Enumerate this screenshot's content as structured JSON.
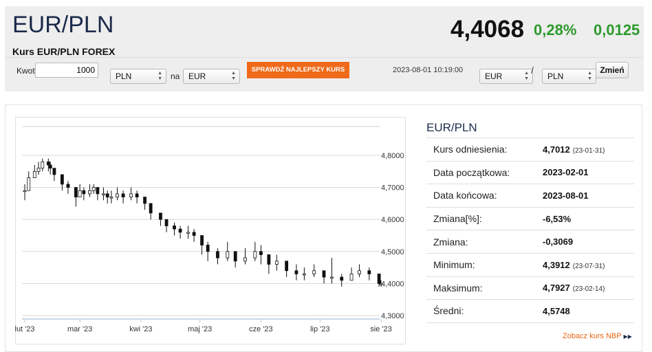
{
  "header": {
    "pair": "EUR/PLN",
    "subtitle": "Kurs EUR/PLN FOREX",
    "price": "4,4068",
    "change_pct": "0,28%",
    "change_abs": "0,0125",
    "change_color": "#2d9a2d"
  },
  "converter": {
    "amount_label": "Kwota",
    "amount_value": "1000",
    "from_currency": "PLN",
    "connector": "na",
    "to_currency": "EUR",
    "best_rate_button": "SPRAWDŹ NAJLEPSZY KURS",
    "timestamp": "2023-08-01 10:19:00",
    "pair_base": "EUR",
    "pair_separator": "/",
    "pair_quote": "PLN",
    "change_button": "Zmień",
    "accent_color": "#f06a1a"
  },
  "stats": {
    "title": "EUR/PLN",
    "rows": [
      {
        "label": "Kurs odniesienia:",
        "value": "4,7012",
        "date": "(23-01-31)"
      },
      {
        "label": "Data początkowa:",
        "value": "2023-02-01",
        "date": ""
      },
      {
        "label": "Data końcowa:",
        "value": "2023-08-01",
        "date": ""
      },
      {
        "label": "Zmiana[%]:",
        "value": "-6,53%",
        "date": ""
      },
      {
        "label": "Zmiana:",
        "value": "-0,3069",
        "date": ""
      },
      {
        "label": "Minimum:",
        "value": "4,3912",
        "date": "(23-07-31)"
      },
      {
        "label": "Maksimum:",
        "value": "4,7927",
        "date": "(23-02-14)"
      },
      {
        "label": "Średni:",
        "value": "4,5748",
        "date": ""
      }
    ],
    "nbp_link": "Zobacz kurs NBP"
  },
  "chart_data": {
    "type": "candlestick",
    "x_ticks": [
      "lut '23",
      "mar '23",
      "kwi '23",
      "maj '23",
      "cze '23",
      "lip '23",
      "sie '23"
    ],
    "y_ticks": [
      "4,8000",
      "4,7000",
      "4,6000",
      "4,5000",
      "4,4000",
      "4,3000"
    ],
    "ylim": [
      4.3,
      4.85
    ],
    "grid": true,
    "y_axis_side": "right",
    "dates": [
      "2023-02-01",
      "2023-02-03",
      "2023-02-06",
      "2023-02-08",
      "2023-02-10",
      "2023-02-13",
      "2023-02-14",
      "2023-02-16",
      "2023-02-20",
      "2023-02-23",
      "2023-02-27",
      "2023-03-01",
      "2023-03-03",
      "2023-03-06",
      "2023-03-08",
      "2023-03-10",
      "2023-03-13",
      "2023-03-15",
      "2023-03-17",
      "2023-03-20",
      "2023-03-23",
      "2023-03-27",
      "2023-03-30",
      "2023-04-03",
      "2023-04-06",
      "2023-04-11",
      "2023-04-14",
      "2023-04-18",
      "2023-04-21",
      "2023-04-25",
      "2023-04-28",
      "2023-05-02",
      "2023-05-05",
      "2023-05-10",
      "2023-05-15",
      "2023-05-19",
      "2023-05-24",
      "2023-05-29",
      "2023-06-01",
      "2023-06-05",
      "2023-06-09",
      "2023-06-14",
      "2023-06-19",
      "2023-06-23",
      "2023-06-28",
      "2023-07-03",
      "2023-07-07",
      "2023-07-12",
      "2023-07-17",
      "2023-07-21",
      "2023-07-26",
      "2023-07-31",
      "2023-08-01"
    ],
    "close": [
      4.69,
      4.73,
      4.75,
      4.76,
      4.78,
      4.77,
      4.76,
      4.74,
      4.71,
      4.7,
      4.67,
      4.69,
      4.68,
      4.69,
      4.7,
      4.68,
      4.68,
      4.67,
      4.67,
      4.68,
      4.67,
      4.68,
      4.67,
      4.65,
      4.62,
      4.6,
      4.58,
      4.57,
      4.56,
      4.56,
      4.55,
      4.52,
      4.5,
      4.48,
      4.5,
      4.47,
      4.48,
      4.5,
      4.49,
      4.46,
      4.47,
      4.44,
      4.43,
      4.43,
      4.44,
      4.42,
      4.42,
      4.41,
      4.43,
      4.44,
      4.43,
      4.4,
      4.4
    ],
    "high": [
      4.71,
      4.75,
      4.77,
      4.78,
      4.79,
      4.79,
      4.78,
      4.76,
      4.73,
      4.72,
      4.69,
      4.71,
      4.7,
      4.71,
      4.71,
      4.7,
      4.7,
      4.69,
      4.69,
      4.7,
      4.69,
      4.7,
      4.69,
      4.67,
      4.64,
      4.62,
      4.6,
      4.59,
      4.58,
      4.58,
      4.57,
      4.54,
      4.53,
      4.51,
      4.53,
      4.5,
      4.51,
      4.53,
      4.52,
      4.48,
      4.49,
      4.46,
      4.46,
      4.45,
      4.46,
      4.44,
      4.48,
      4.43,
      4.45,
      4.46,
      4.45,
      4.42,
      4.41
    ],
    "low": [
      4.66,
      4.7,
      4.73,
      4.74,
      4.75,
      4.75,
      4.74,
      4.72,
      4.69,
      4.68,
      4.64,
      4.67,
      4.66,
      4.67,
      4.68,
      4.66,
      4.66,
      4.65,
      4.65,
      4.66,
      4.65,
      4.66,
      4.65,
      4.63,
      4.6,
      4.58,
      4.56,
      4.55,
      4.54,
      4.54,
      4.53,
      4.49,
      4.47,
      4.46,
      4.47,
      4.45,
      4.46,
      4.47,
      4.46,
      4.43,
      4.44,
      4.42,
      4.41,
      4.41,
      4.42,
      4.4,
      4.4,
      4.39,
      4.41,
      4.42,
      4.41,
      4.39,
      4.39
    ]
  }
}
